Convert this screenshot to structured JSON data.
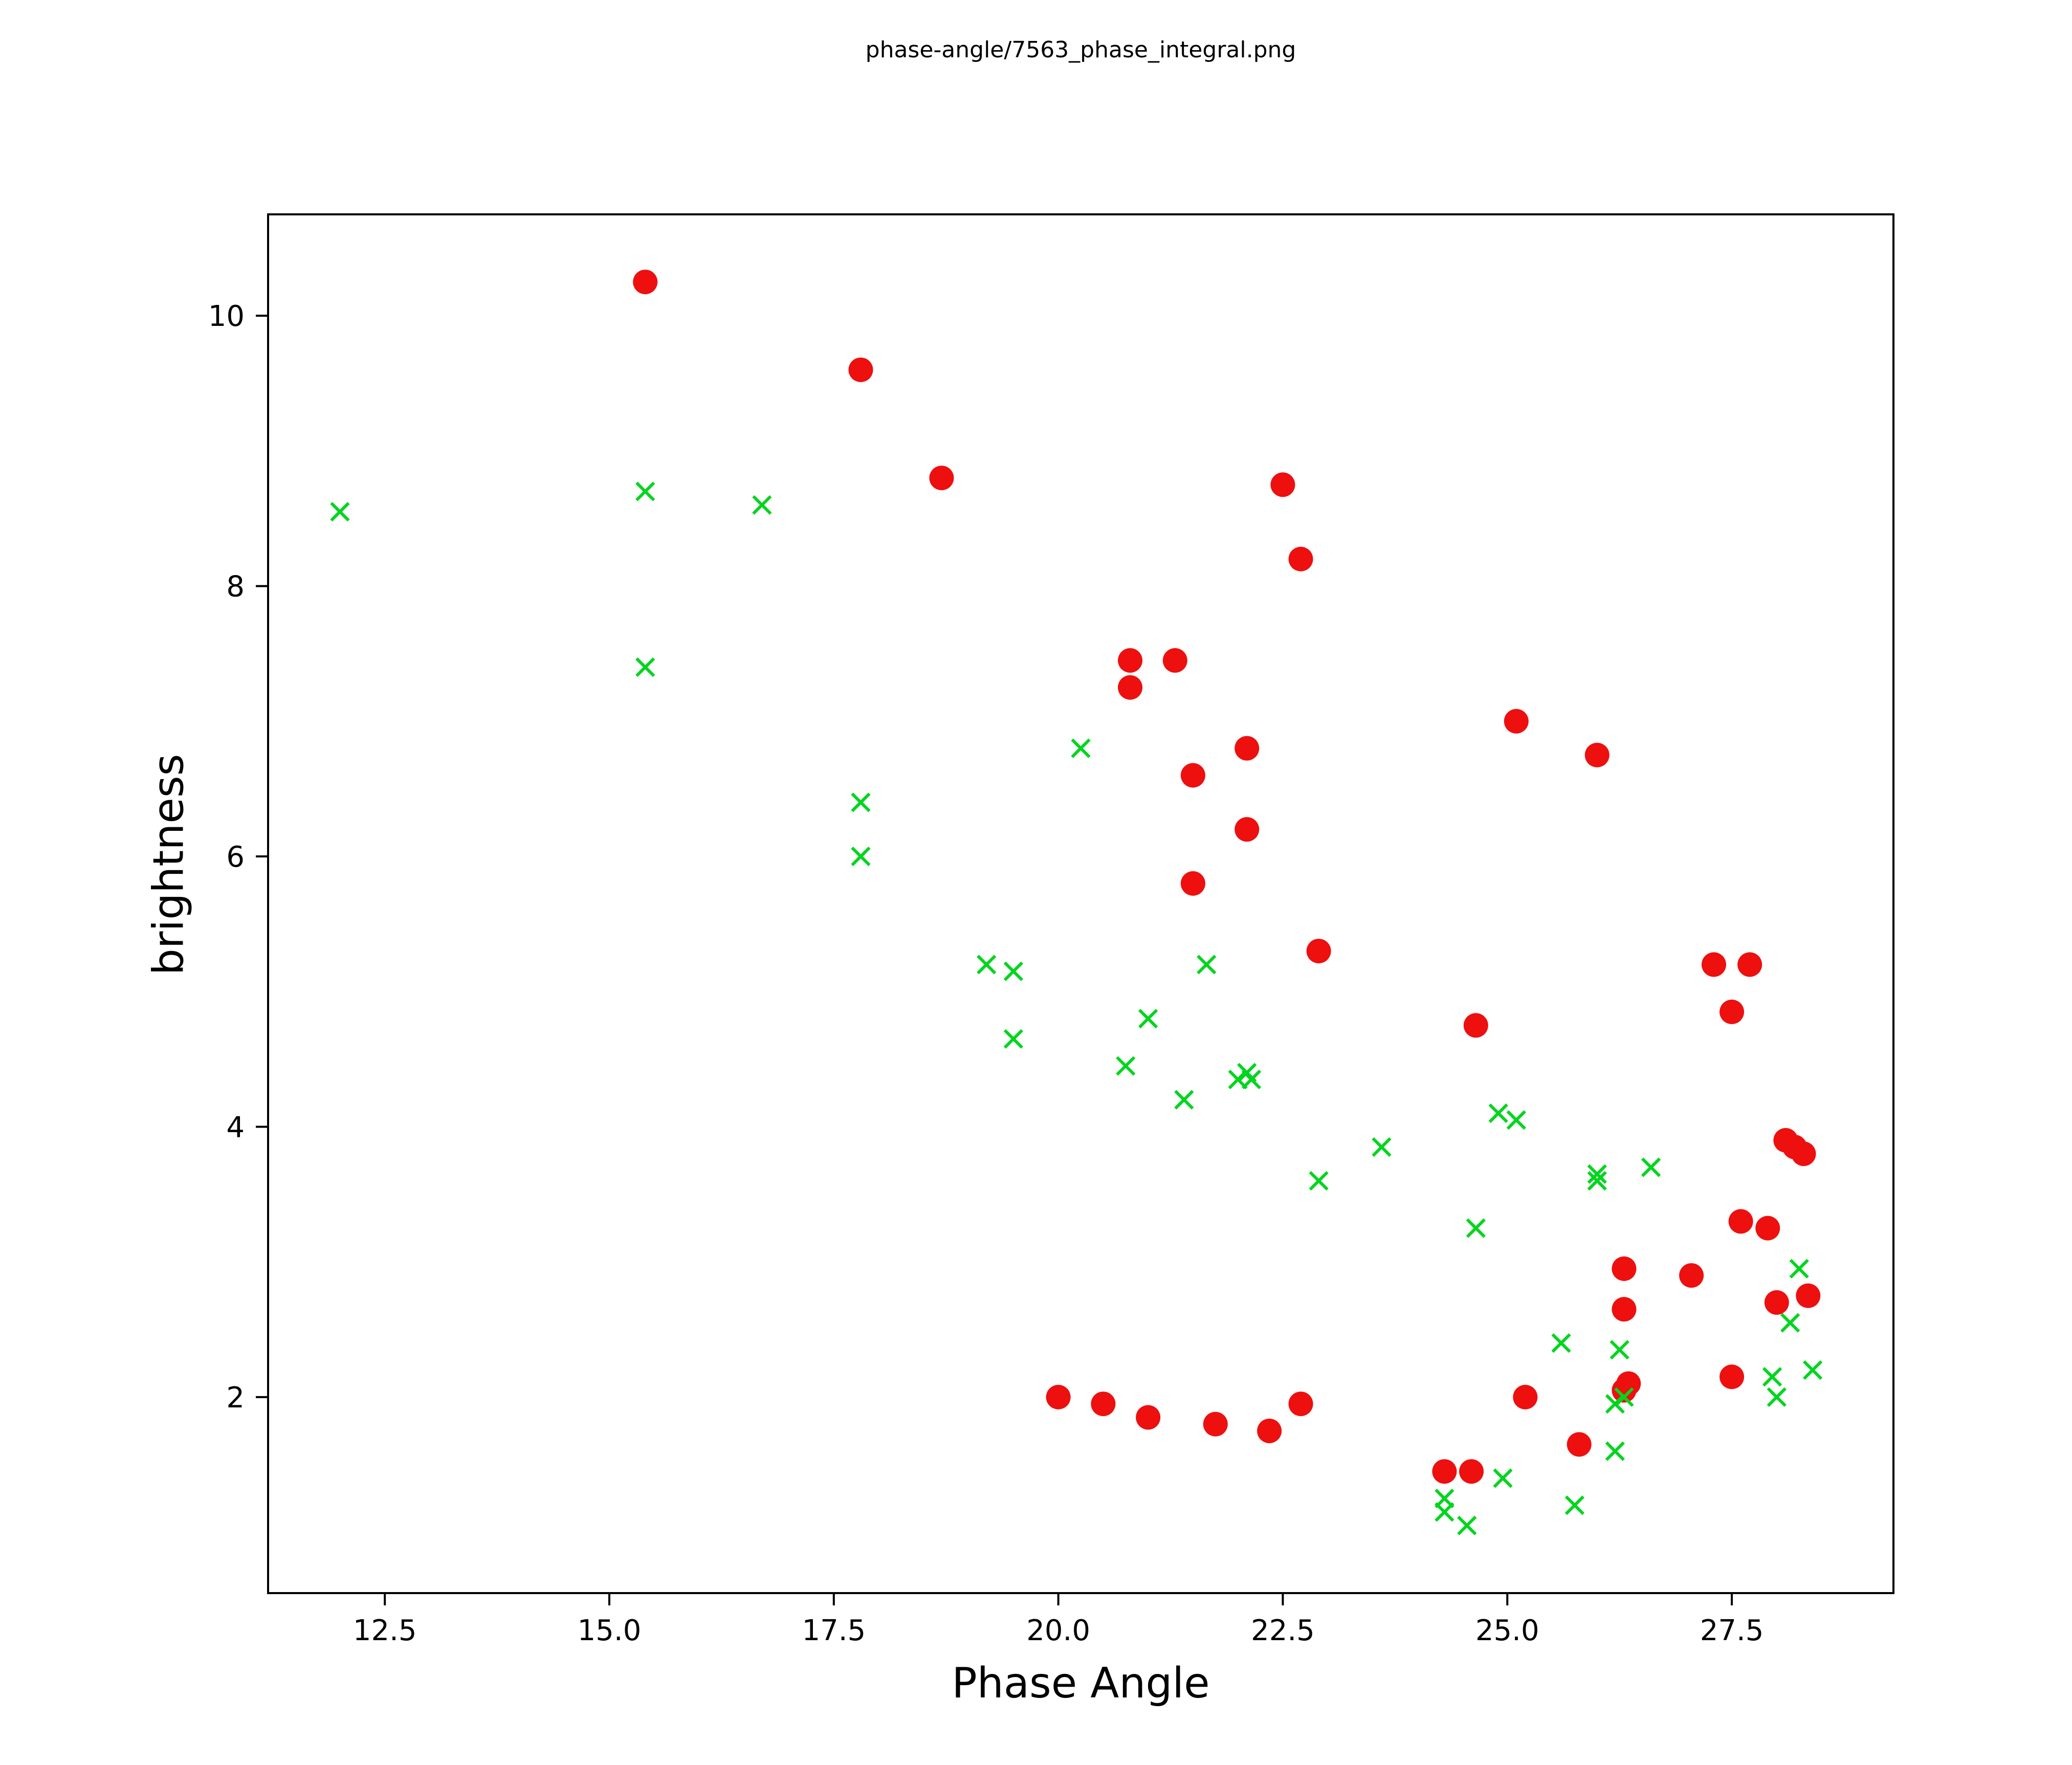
{
  "chart_data": {
    "type": "scatter",
    "title": "phase-angle/7563_phase_integral.png",
    "xlabel": "Phase Angle",
    "ylabel": "brightness",
    "xlim": [
      11.2,
      29.3
    ],
    "ylim": [
      0.55,
      10.75
    ],
    "xticks": [
      12.5,
      15.0,
      17.5,
      20.0,
      22.5,
      25.0,
      27.5
    ],
    "xtick_labels": [
      "12.5",
      "15.0",
      "17.5",
      "20.0",
      "22.5",
      "25.0",
      "27.5"
    ],
    "yticks": [
      2,
      4,
      6,
      8,
      10
    ],
    "ytick_labels": [
      "2",
      "4",
      "6",
      "8",
      "10"
    ],
    "grid": false,
    "legend": "none",
    "series": [
      {
        "name": "red-circles",
        "marker": "circle",
        "color": "#ee0f0f",
        "points": [
          [
            15.4,
            10.25
          ],
          [
            17.8,
            9.6
          ],
          [
            18.7,
            8.8
          ],
          [
            22.5,
            8.75
          ],
          [
            22.7,
            8.2
          ],
          [
            20.8,
            7.45
          ],
          [
            21.3,
            7.45
          ],
          [
            20.8,
            7.25
          ],
          [
            25.1,
            7.0
          ],
          [
            26.0,
            6.75
          ],
          [
            22.1,
            6.8
          ],
          [
            21.5,
            6.6
          ],
          [
            22.1,
            6.2
          ],
          [
            21.5,
            5.8
          ],
          [
            22.9,
            5.3
          ],
          [
            27.3,
            5.2
          ],
          [
            27.7,
            5.2
          ],
          [
            27.5,
            4.85
          ],
          [
            24.65,
            4.75
          ],
          [
            28.1,
            3.9
          ],
          [
            28.2,
            3.85
          ],
          [
            28.3,
            3.8
          ],
          [
            27.6,
            3.3
          ],
          [
            27.9,
            3.25
          ],
          [
            26.3,
            2.95
          ],
          [
            27.05,
            2.9
          ],
          [
            28.35,
            2.75
          ],
          [
            28.0,
            2.7
          ],
          [
            26.3,
            2.65
          ],
          [
            27.5,
            2.15
          ],
          [
            26.35,
            2.1
          ],
          [
            26.3,
            2.05
          ],
          [
            25.2,
            2.0
          ],
          [
            20.0,
            2.0
          ],
          [
            20.5,
            1.95
          ],
          [
            22.7,
            1.95
          ],
          [
            21.0,
            1.85
          ],
          [
            21.75,
            1.8
          ],
          [
            22.35,
            1.75
          ],
          [
            25.8,
            1.65
          ],
          [
            24.3,
            1.45
          ],
          [
            24.6,
            1.45
          ]
        ]
      },
      {
        "name": "green-x",
        "marker": "x",
        "color": "#00d51e",
        "points": [
          [
            12.0,
            8.55
          ],
          [
            15.4,
            8.7
          ],
          [
            16.7,
            8.6
          ],
          [
            15.4,
            7.4
          ],
          [
            17.8,
            6.4
          ],
          [
            17.8,
            6.0
          ],
          [
            20.25,
            6.8
          ],
          [
            19.2,
            5.2
          ],
          [
            19.5,
            5.15
          ],
          [
            21.65,
            5.2
          ],
          [
            19.5,
            4.65
          ],
          [
            21.0,
            4.8
          ],
          [
            20.75,
            4.45
          ],
          [
            21.4,
            4.2
          ],
          [
            22.0,
            4.35
          ],
          [
            22.1,
            4.4
          ],
          [
            22.15,
            4.35
          ],
          [
            22.9,
            3.6
          ],
          [
            23.6,
            3.85
          ],
          [
            24.9,
            4.1
          ],
          [
            25.1,
            4.05
          ],
          [
            24.65,
            3.25
          ],
          [
            26.0,
            3.65
          ],
          [
            26.0,
            3.6
          ],
          [
            26.6,
            3.7
          ],
          [
            28.25,
            2.95
          ],
          [
            28.15,
            2.55
          ],
          [
            25.6,
            2.4
          ],
          [
            26.25,
            2.35
          ],
          [
            28.4,
            2.2
          ],
          [
            27.95,
            2.15
          ],
          [
            28.0,
            2.0
          ],
          [
            26.3,
            2.0
          ],
          [
            26.2,
            1.95
          ],
          [
            26.2,
            1.6
          ],
          [
            24.95,
            1.4
          ],
          [
            25.75,
            1.2
          ],
          [
            24.3,
            1.25
          ],
          [
            24.3,
            1.15
          ],
          [
            24.55,
            1.05
          ]
        ]
      }
    ]
  }
}
